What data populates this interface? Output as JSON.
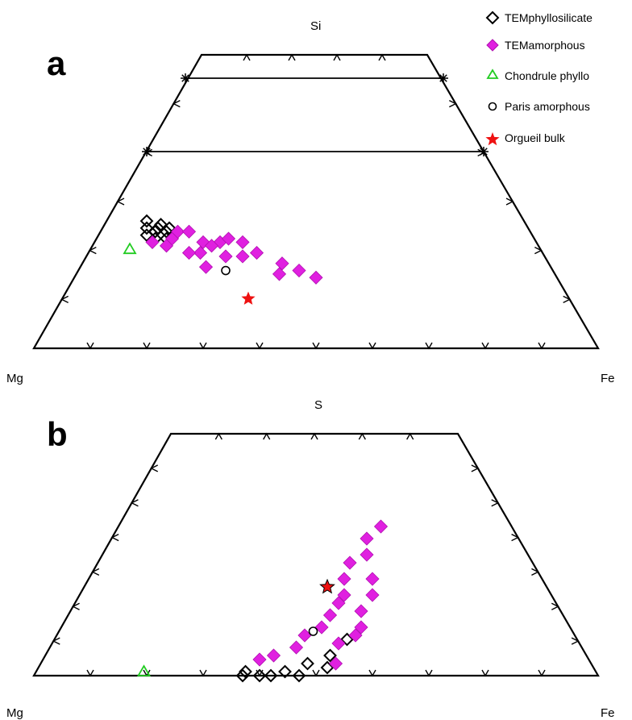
{
  "legend": {
    "items": [
      {
        "label": "TEMphyllosilicate",
        "marker": "diamond-open",
        "color": "#000000"
      },
      {
        "label": "TEMamorphous",
        "marker": "diamond-filled",
        "color": "#e020e0"
      },
      {
        "label": "Chondrule phyllo",
        "marker": "triangle-open",
        "color": "#22cc22"
      },
      {
        "label": "Paris amorphous",
        "marker": "circle-open",
        "color": "#000000"
      },
      {
        "label": "Orgueil bulk",
        "marker": "star-filled",
        "color": "#ee1111"
      }
    ]
  },
  "chart_data": [
    {
      "panel": "a",
      "type": "scatter",
      "plot": "ternary",
      "apex_top": "Si",
      "apex_left": "Mg",
      "apex_right": "Fe",
      "view": "truncated; top fraction above about 0.2 not shown",
      "series": [
        {
          "name": "TEMphyllosilicate",
          "points": [
            [
              0.61,
              0.34
            ],
            [
              0.62,
              0.33
            ],
            [
              0.6,
              0.33
            ],
            [
              0.63,
              0.31
            ],
            [
              0.6,
              0.35
            ],
            [
              0.64,
              0.32
            ],
            [
              0.59,
              0.34
            ],
            [
              0.62,
              0.36
            ],
            [
              0.61,
              0.31
            ],
            [
              0.63,
              0.34
            ]
          ]
        },
        {
          "name": "TEMamorphous",
          "points": [
            [
              0.6,
              0.31
            ],
            [
              0.58,
              0.33
            ],
            [
              0.56,
              0.33
            ],
            [
              0.55,
              0.3
            ],
            [
              0.52,
              0.3
            ],
            [
              0.5,
              0.31
            ],
            [
              0.48,
              0.3
            ],
            [
              0.47,
              0.27
            ],
            [
              0.44,
              0.24
            ],
            [
              0.42,
              0.22
            ],
            [
              0.53,
              0.26
            ],
            [
              0.57,
              0.27
            ],
            [
              0.62,
              0.29
            ],
            [
              0.64,
              0.3
            ],
            [
              0.58,
              0.23
            ],
            [
              0.5,
              0.26
            ],
            [
              0.46,
              0.21
            ],
            [
              0.4,
              0.2
            ],
            [
              0.54,
              0.29
            ],
            [
              0.59,
              0.27
            ]
          ]
        },
        {
          "name": "Chondrule phyllo",
          "points": [
            [
              0.69,
              0.28
            ]
          ]
        },
        {
          "name": "Paris amorphous",
          "points": [
            [
              0.55,
              0.22
            ]
          ]
        },
        {
          "name": "Orgueil bulk",
          "points": [
            [
              0.55,
              0.14
            ]
          ]
        }
      ]
    },
    {
      "panel": "b",
      "type": "scatter",
      "plot": "ternary",
      "apex_top": "S",
      "apex_left": "Mg",
      "apex_right": "Fe",
      "view": "truncated; top fraction above about 0.4 not shown",
      "series": [
        {
          "name": "TEMphyllosilicate",
          "points": [
            [
              0.63,
              0.0
            ],
            [
              0.62,
              0.01
            ],
            [
              0.6,
              0.0
            ],
            [
              0.58,
              0.0
            ],
            [
              0.55,
              0.01
            ],
            [
              0.53,
              0.0
            ],
            [
              0.5,
              0.03
            ],
            [
              0.45,
              0.05
            ],
            [
              0.47,
              0.02
            ],
            [
              0.4,
              0.09
            ]
          ]
        },
        {
          "name": "TEMamorphous",
          "points": [
            [
              0.2,
              0.37
            ],
            [
              0.24,
              0.34
            ],
            [
              0.26,
              0.3
            ],
            [
              0.3,
              0.28
            ],
            [
              0.33,
              0.24
            ],
            [
              0.35,
              0.2
            ],
            [
              0.37,
              0.18
            ],
            [
              0.4,
              0.15
            ],
            [
              0.43,
              0.12
            ],
            [
              0.47,
              0.1
            ],
            [
              0.5,
              0.07
            ],
            [
              0.55,
              0.05
            ],
            [
              0.58,
              0.04
            ],
            [
              0.34,
              0.16
            ],
            [
              0.3,
              0.2
            ],
            [
              0.38,
              0.1
            ],
            [
              0.42,
              0.08
            ],
            [
              0.36,
              0.12
            ],
            [
              0.28,
              0.24
            ],
            [
              0.45,
              0.03
            ]
          ]
        },
        {
          "name": "Chondrule phyllo",
          "points": [
            [
              0.8,
              0.01
            ]
          ]
        },
        {
          "name": "Paris amorphous",
          "points": [
            [
              0.45,
              0.11
            ]
          ]
        },
        {
          "name": "Orgueil bulk",
          "points": [
            [
              0.37,
              0.22
            ]
          ]
        }
      ]
    }
  ]
}
